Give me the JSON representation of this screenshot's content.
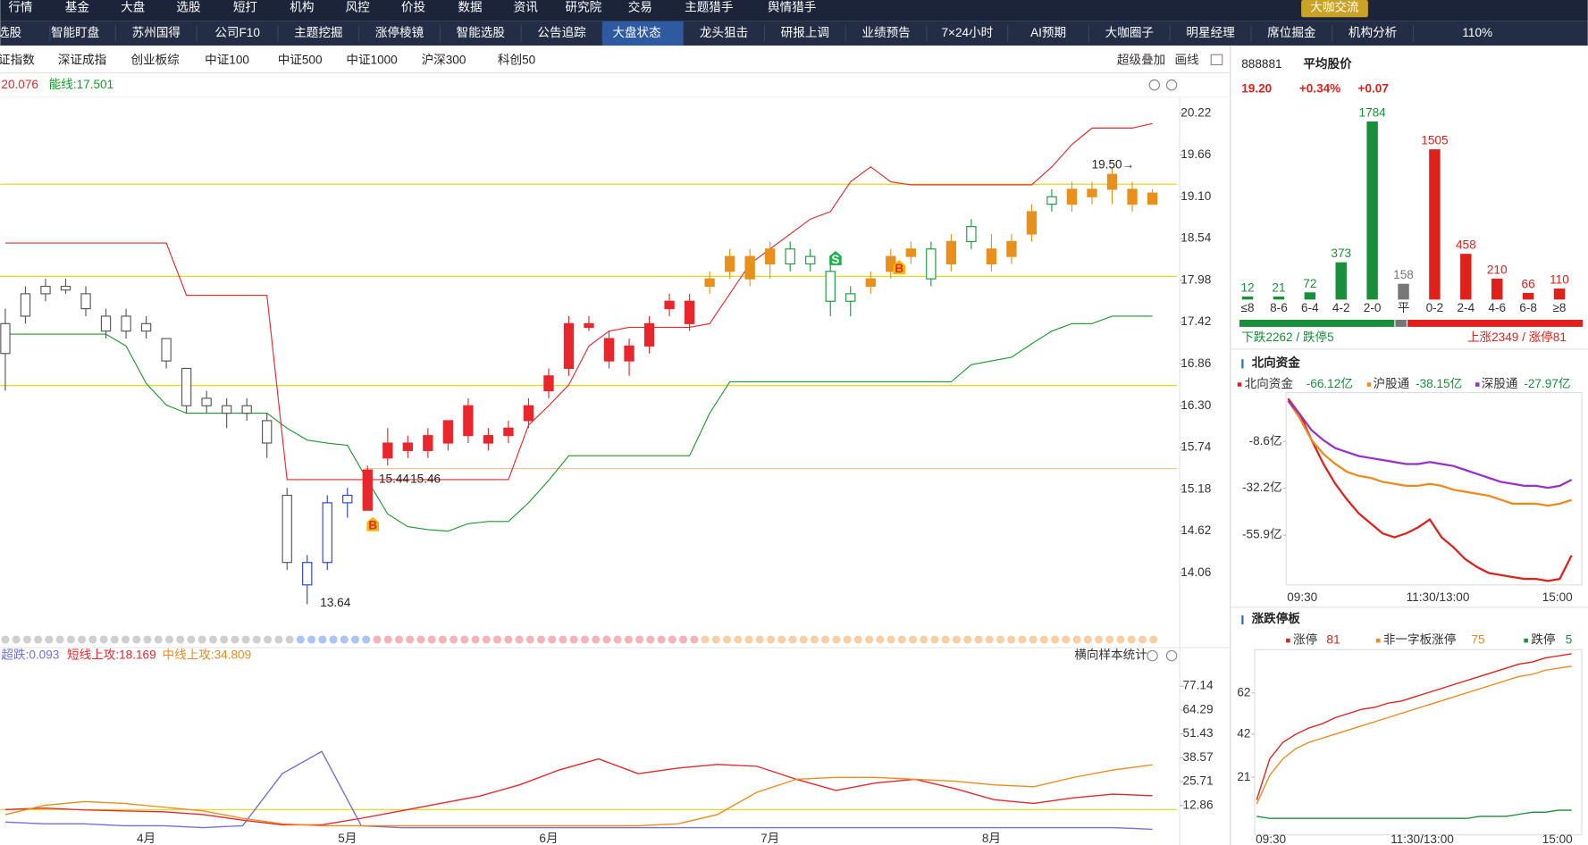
{
  "menu": {
    "items": [
      "行情",
      "基金",
      "大盘",
      "选股",
      "短打",
      "机构",
      "风控",
      "价投",
      "数据",
      "资讯",
      "研究院",
      "交易",
      "主题猎手",
      "舆情猎手"
    ],
    "button": "大咖交流"
  },
  "tabs": {
    "items": [
      "选股",
      "智能盯盘",
      "苏州国得",
      "公司F10",
      "主题挖掘",
      "涨停棱镜",
      "智能选股",
      "公告追踪",
      "大盘状态",
      "龙头狙击",
      "研报上调",
      "业绩预告",
      "7×24小时",
      "AI预期",
      "大咖圈子",
      "明星经理",
      "席位掘金",
      "机构分析"
    ],
    "zoom": "110%"
  },
  "index_tabs": {
    "items": [
      "证指数",
      "深证成指",
      "创业板综",
      "中证100",
      "中证500",
      "中证1000",
      "沪深300",
      "科创50"
    ],
    "tools": [
      "超级叠加",
      "画线"
    ]
  },
  "chart_data": [
    {
      "type": "candlestick",
      "indicators": [
        "20.076",
        "能线:17.501"
      ],
      "categories": [
        null,
        null,
        null,
        null,
        null,
        null,
        null,
        "4月",
        null,
        null,
        null,
        null,
        null,
        null,
        null,
        null,
        null,
        "5月",
        null,
        null,
        null,
        null,
        null,
        null,
        null,
        null,
        null,
        "6月",
        null,
        null,
        null,
        null,
        null,
        null,
        null,
        null,
        null,
        null,
        "7月",
        null,
        null,
        null,
        null,
        null,
        null,
        null,
        null,
        null,
        null,
        "8月",
        null,
        null,
        null,
        null,
        null,
        null,
        null,
        null
      ],
      "candles": [
        [
          17.0,
          17.6,
          16.5,
          17.4
        ],
        [
          17.5,
          17.9,
          17.4,
          17.8
        ],
        [
          17.8,
          18.0,
          17.7,
          17.9
        ],
        [
          17.9,
          18.0,
          17.8,
          17.85
        ],
        [
          17.8,
          17.9,
          17.5,
          17.6
        ],
        [
          17.5,
          17.6,
          17.2,
          17.3
        ],
        [
          17.3,
          17.6,
          17.2,
          17.5
        ],
        [
          17.4,
          17.5,
          17.2,
          17.3
        ],
        [
          17.2,
          17.2,
          16.8,
          16.9
        ],
        [
          16.8,
          16.8,
          16.2,
          16.3
        ],
        [
          16.3,
          16.5,
          16.2,
          16.4
        ],
        [
          16.3,
          16.4,
          16.0,
          16.2
        ],
        [
          16.2,
          16.4,
          16.1,
          16.3
        ],
        [
          16.1,
          16.2,
          15.6,
          15.8
        ],
        [
          15.1,
          15.2,
          14.1,
          14.2
        ],
        [
          13.9,
          14.3,
          13.64,
          14.2
        ],
        [
          14.2,
          15.1,
          14.1,
          15.0
        ],
        [
          15.0,
          15.2,
          14.8,
          15.1
        ],
        [
          14.9,
          15.5,
          14.9,
          15.44
        ],
        [
          15.6,
          16.0,
          15.5,
          15.8
        ],
        [
          15.7,
          15.9,
          15.6,
          15.8
        ],
        [
          15.7,
          16.0,
          15.6,
          15.9
        ],
        [
          15.8,
          16.1,
          15.7,
          16.1
        ],
        [
          16.3,
          16.4,
          15.8,
          15.9
        ],
        [
          15.8,
          16.0,
          15.7,
          15.9
        ],
        [
          15.9,
          16.1,
          15.8,
          16.0
        ],
        [
          16.1,
          16.4,
          16.0,
          16.3
        ],
        [
          16.5,
          16.8,
          16.4,
          16.7
        ],
        [
          16.8,
          17.5,
          16.7,
          17.4
        ],
        [
          17.4,
          17.5,
          17.3,
          17.35
        ],
        [
          17.2,
          17.3,
          16.8,
          16.9
        ],
        [
          16.9,
          17.2,
          16.7,
          17.1
        ],
        [
          17.1,
          17.5,
          17.0,
          17.4
        ],
        [
          17.6,
          17.8,
          17.5,
          17.7
        ],
        [
          17.4,
          17.8,
          17.3,
          17.7
        ],
        [
          17.9,
          18.1,
          17.8,
          18.0
        ],
        [
          18.1,
          18.4,
          18.0,
          18.3
        ],
        [
          18.0,
          18.4,
          17.9,
          18.3
        ],
        [
          18.2,
          18.5,
          18.0,
          18.4
        ],
        [
          18.4,
          18.5,
          18.1,
          18.2
        ],
        [
          18.3,
          18.4,
          18.1,
          18.2
        ],
        [
          18.1,
          18.2,
          17.5,
          17.7
        ],
        [
          17.7,
          17.9,
          17.5,
          17.8
        ],
        [
          17.9,
          18.1,
          17.8,
          18.0
        ],
        [
          18.1,
          18.4,
          18.0,
          18.3
        ],
        [
          18.3,
          18.5,
          18.2,
          18.4
        ],
        [
          18.4,
          18.5,
          17.9,
          18.0
        ],
        [
          18.2,
          18.6,
          18.1,
          18.5
        ],
        [
          18.7,
          18.8,
          18.4,
          18.5
        ],
        [
          18.4,
          18.6,
          18.1,
          18.2
        ],
        [
          18.3,
          18.6,
          18.2,
          18.5
        ],
        [
          18.6,
          19.0,
          18.5,
          18.9
        ],
        [
          19.1,
          19.2,
          18.9,
          19.0
        ],
        [
          19.0,
          19.3,
          18.9,
          19.2
        ],
        [
          19.1,
          19.3,
          19.0,
          19.2
        ],
        [
          19.2,
          19.5,
          19.0,
          19.4
        ],
        [
          19.2,
          19.3,
          18.9,
          19.0
        ],
        [
          19.0,
          19.2,
          19.0,
          19.15
        ]
      ],
      "candle_colors": [
        "#555555",
        "#555555",
        "#555555",
        "#555555",
        "#555555",
        "#555555",
        "#555555",
        "#555555",
        "#555555",
        "#555555",
        "#555555",
        "#555555",
        "#555555",
        "#555555",
        "#555555",
        "#2a3fd6",
        "#2a3fd6",
        "#2a3fd6",
        "#e8262b",
        "#e8262b",
        "#e8262b",
        "#e8262b",
        "#e8262b",
        "#e8262b",
        "#e8262b",
        "#e8262b",
        "#e8262b",
        "#e8262b",
        "#e8262b",
        "#e8262b",
        "#e8262b",
        "#e8262b",
        "#e8262b",
        "#e8262b",
        "#e8262b",
        "#e8901c",
        "#e8901c",
        "#e8901c",
        "#e8901c",
        "#169a3b",
        "#169a3b",
        "#169a3b",
        "#169a3b",
        "#e8901c",
        "#e8901c",
        "#e8901c",
        "#169a3b",
        "#e8901c",
        "#169a3b",
        "#e8901c",
        "#e8901c",
        "#e8901c",
        "#169a3b",
        "#e8901c",
        "#e8901c",
        "#e8901c",
        "#e8901c",
        "#e8901c"
      ],
      "hollow_colors": [
        "#555555",
        "#2a3fd6",
        "#169a3b"
      ],
      "series": [
        {
          "color": "#e8262b",
          "values": [
            18.48,
            18.48,
            18.48,
            18.48,
            18.48,
            18.48,
            18.48,
            18.48,
            18.48,
            17.78,
            17.78,
            17.78,
            17.78,
            17.78,
            15.31,
            15.31,
            15.31,
            15.31,
            15.31,
            15.31,
            15.31,
            15.31,
            15.31,
            15.31,
            15.31,
            15.31,
            16.04,
            16.3,
            16.58,
            17.1,
            17.3,
            17.35,
            17.35,
            17.35,
            17.35,
            17.4,
            17.8,
            18.2,
            18.4,
            18.6,
            18.8,
            18.9,
            19.3,
            19.5,
            19.3,
            19.26,
            19.26,
            19.26,
            19.26,
            19.26,
            19.26,
            19.26,
            19.5,
            19.8,
            20.02,
            20.02,
            20.02,
            20.08
          ]
        },
        {
          "color": "#1a9a2e",
          "values": [
            17.26,
            17.26,
            17.26,
            17.26,
            17.26,
            17.26,
            17.1,
            16.6,
            16.31,
            16.2,
            16.2,
            16.2,
            16.2,
            16.2,
            16.0,
            15.84,
            15.8,
            15.77,
            15.3,
            14.85,
            14.68,
            14.64,
            14.62,
            14.72,
            14.75,
            14.75,
            15.0,
            15.3,
            15.63,
            15.63,
            15.63,
            15.63,
            15.63,
            15.63,
            15.63,
            16.2,
            16.62,
            16.62,
            16.62,
            16.62,
            16.62,
            16.62,
            16.62,
            16.62,
            16.62,
            16.62,
            16.62,
            16.62,
            16.85,
            16.9,
            16.95,
            17.13,
            17.3,
            17.4,
            17.4,
            17.5,
            17.5,
            17.5
          ]
        }
      ],
      "price_notes": [
        15.44,
        15.46,
        13.64,
        "19.50→"
      ],
      "signals": [
        "B",
        "S",
        "B"
      ],
      "ylim": [
        13.33,
        20.38
      ],
      "yticks": [
        20.22,
        19.66,
        {
          "value": 19.1,
          "label": "19.10"
        },
        18.54,
        17.98,
        17.42,
        16.86,
        {
          "value": 16.3,
          "label": "16.30"
        },
        15.74,
        15.18,
        14.62,
        14.06
      ]
    },
    {
      "type": "line",
      "stat_label": "横向样本统计",
      "series": [
        {
          "name": "超跌:0.093",
          "color": "#6f6fe0",
          "values": [
            4,
            3,
            3,
            2,
            2,
            1,
            2,
            30,
            42,
            2,
            1,
            1,
            1,
            1,
            1,
            1,
            1,
            1,
            1,
            1,
            1,
            1,
            1,
            1,
            1,
            1,
            1,
            1,
            1,
            0.093
          ]
        },
        {
          "name": "短线上攻:18.169",
          "color": "#e8262b",
          "values": [
            10.7,
            11.5,
            10.5,
            10,
            9.5,
            8,
            5,
            2.5,
            2.5,
            6,
            10,
            14,
            18,
            24,
            32,
            38,
            30,
            33,
            35,
            34,
            27,
            21,
            25,
            27,
            22,
            16,
            14,
            17,
            19,
            18.169
          ]
        },
        {
          "name": "中线上攻:34.809",
          "color": "#ee8a1c",
          "values": [
            8,
            13,
            15,
            14,
            12,
            10,
            6,
            3,
            2,
            2,
            2,
            2,
            2,
            2,
            2,
            2,
            2,
            3,
            8,
            20,
            27,
            28,
            28,
            27,
            26,
            24,
            23,
            28,
            32,
            34.809
          ]
        }
      ],
      "ylim": [
        -0.2,
        82.6
      ],
      "yticks": [
        77.14,
        64.29,
        51.43,
        38.57,
        25.71,
        12.86
      ]
    },
    {
      "type": "bar",
      "code": "888881",
      "title": "平均股价",
      "price": "19.20",
      "change_pct": "+0.34%",
      "change": "+0.07",
      "categories": [
        "≤8",
        "8-6",
        "6-4",
        "4-2",
        "2-0",
        "平",
        "0-2",
        "2-4",
        "4-6",
        "6-8",
        "≥8"
      ],
      "values": [
        12,
        21,
        72,
        373,
        1784,
        158,
        1505,
        458,
        210,
        66,
        110
      ],
      "colors": [
        "#1a8f3a",
        "#1a8f3a",
        "#1a8f3a",
        "#1a8f3a",
        "#1a8f3a",
        "#777777",
        "#e0201b",
        "#e0201b",
        "#e0201b",
        "#e0201b",
        "#e0201b"
      ],
      "summary": {
        "down": "下跌2262 / 跌停5",
        "up": "上涨2349 / 涨停81"
      }
    },
    {
      "type": "line",
      "title": "北向资金",
      "series": [
        {
          "name": "北向资金",
          "value_label": "-66.12亿",
          "color": "#e0201b",
          "values": [
            13,
            5,
            -8,
            -20,
            -30,
            -38,
            -45,
            -50,
            -55,
            -57,
            -55,
            -52,
            -48,
            -57,
            -62,
            -68,
            -72,
            -75,
            -76,
            -77,
            -78,
            -78,
            -79,
            -78,
            -66.12
          ]
        },
        {
          "name": "沪股通",
          "value_label": "-38.15亿",
          "color": "#ee8a1c",
          "values": [
            12,
            3,
            -8,
            -15,
            -20,
            -24,
            -26,
            -27,
            -29,
            -30,
            -31,
            -31,
            -30,
            -31,
            -33,
            -34,
            -35,
            -36,
            -38,
            -40,
            -40,
            -40,
            -41,
            -40,
            -38.15
          ]
        },
        {
          "name": "深股通",
          "value_label": "-27.97亿",
          "color": "#9b30c8",
          "values": [
            12,
            5,
            -3,
            -8,
            -12,
            -14,
            -16,
            -17,
            -18,
            -19,
            -20,
            -20,
            -19,
            -20,
            -21,
            -23,
            -25,
            -27,
            -29,
            -30,
            -31,
            -31,
            -32,
            -31,
            -27.97
          ]
        }
      ],
      "ylim": [
        -81,
        16
      ],
      "yticks": [
        {
          "value": -8.6,
          "label": "-8.6亿"
        },
        {
          "value": -32.2,
          "label": "-32.2亿"
        },
        {
          "value": -55.9,
          "label": "-55.9亿"
        }
      ],
      "x_labels": [
        "09:30",
        "11:30/13:00",
        "15:00"
      ]
    },
    {
      "type": "line",
      "title": "涨跌停板",
      "series": [
        {
          "name": "涨停",
          "value_label": "81",
          "color": "#e0201b",
          "values": [
            10,
            30,
            38,
            42,
            45,
            47,
            50,
            52,
            54,
            55,
            57,
            58,
            60,
            62,
            64,
            66,
            68,
            70,
            72,
            74,
            76,
            77,
            79,
            80,
            81
          ]
        },
        {
          "name": "非一字板涨停",
          "value_label": "75",
          "color": "#ee8a1c",
          "values": [
            8,
            22,
            30,
            35,
            38,
            40,
            42,
            44,
            46,
            48,
            50,
            52,
            54,
            56,
            58,
            60,
            62,
            64,
            66,
            68,
            70,
            71,
            73,
            74,
            75
          ]
        },
        {
          "name": "跌停",
          "value_label": "5",
          "color": "#1a8f3a",
          "values": [
            2,
            1,
            1,
            1,
            1,
            1,
            1,
            1,
            1,
            1,
            1,
            1,
            1,
            1,
            1,
            1,
            1,
            2,
            2,
            2,
            3,
            4,
            4,
            5,
            5
          ]
        }
      ],
      "ylim": [
        -7,
        83
      ],
      "yticks": [
        62,
        42,
        21
      ],
      "x_labels": [
        "09:30",
        "11:30/13:00",
        "15:00"
      ]
    }
  ]
}
